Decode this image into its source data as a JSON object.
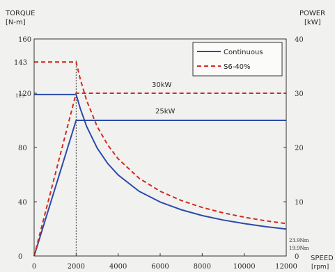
{
  "chart_data": {
    "type": "line",
    "left_axis": {
      "title_line1": "TORQUE",
      "title_line2": "[N-m]",
      "ticks": [
        0,
        40,
        80,
        120,
        160
      ],
      "extra_ticks": [
        143
      ],
      "small_labels": [
        "119"
      ],
      "range": [
        0,
        160
      ]
    },
    "right_axis": {
      "title_line1": "POWER",
      "title_line2": "[kW]",
      "ticks": [
        0,
        10,
        20,
        30,
        40
      ],
      "range": [
        0,
        40
      ]
    },
    "x_axis": {
      "title_line1": "SPEED",
      "title_line2": "[rpm]",
      "ticks": [
        0,
        2000,
        4000,
        6000,
        8000,
        10000,
        12000
      ],
      "range": [
        0,
        12000
      ]
    },
    "legend": {
      "placement": "top-right",
      "entries": [
        {
          "name": "Continuous",
          "color": "#2b4aa8",
          "style": "solid"
        },
        {
          "name": "S6-40%",
          "color": "#d12b20",
          "style": "dashed"
        }
      ]
    },
    "annotations": {
      "power_s6": "30kW",
      "power_cont": "25kW",
      "end_s6": "23.9Nm",
      "end_cont": "19.9Nm"
    },
    "base_speed": 2000,
    "series": [
      {
        "name": "Continuous",
        "kind": "torque",
        "color": "#2b4aa8",
        "x": [
          0,
          2000,
          2200,
          2500,
          3000,
          3500,
          4000,
          5000,
          6000,
          7000,
          8000,
          9000,
          10000,
          11000,
          12000
        ],
        "y": [
          119,
          119,
          108.5,
          95.5,
          79.6,
          68.2,
          59.7,
          47.7,
          39.8,
          34.1,
          29.8,
          26.5,
          23.9,
          21.7,
          19.9
        ]
      },
      {
        "name": "S6-40%",
        "kind": "torque",
        "color": "#d12b20",
        "x": [
          0,
          2000,
          2200,
          2500,
          3000,
          3500,
          4000,
          5000,
          6000,
          7000,
          8000,
          9000,
          10000,
          11000,
          12000
        ],
        "y": [
          143,
          143,
          130.2,
          114.6,
          95.5,
          81.9,
          71.6,
          57.3,
          47.7,
          40.9,
          35.8,
          31.8,
          28.6,
          26.0,
          23.9
        ]
      },
      {
        "name": "Continuous",
        "kind": "power",
        "color": "#2b4aa8",
        "x": [
          0,
          2000,
          12000
        ],
        "y": [
          0,
          25,
          25
        ]
      },
      {
        "name": "S6-40%",
        "kind": "power",
        "color": "#d12b20",
        "x": [
          0,
          2000,
          12000
        ],
        "y": [
          0,
          30,
          30
        ]
      }
    ]
  }
}
